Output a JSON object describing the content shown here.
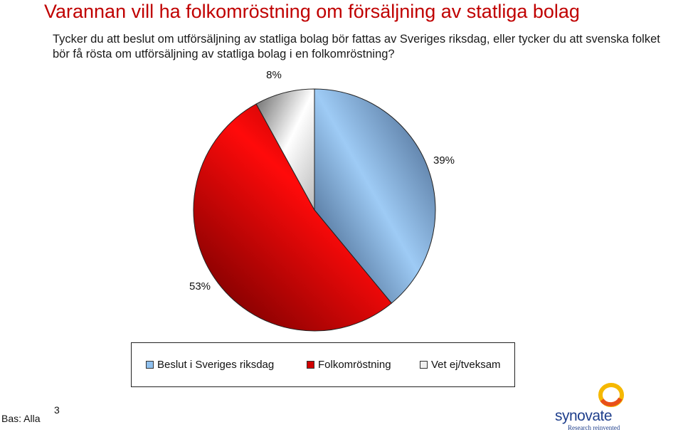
{
  "title": "Varannan vill ha folkomröstning om försäljning av statliga bolag",
  "question": "Tycker du att beslut om utförsäljning av statliga bolag bör fattas av Sveriges riksdag, eller tycker du att svenska folket bör få rösta om utförsäljning av statliga bolag i en folkomröstning?",
  "chart_data": {
    "type": "pie",
    "categories": [
      "Beslut i Sveriges riksdag",
      "Folkomröstning",
      "Vet ej/tveksam"
    ],
    "values": [
      39,
      53,
      8
    ],
    "labels": [
      "39%",
      "53%",
      "8%"
    ],
    "colors": [
      "#8fc0ee",
      "#e01010",
      "#f0f0f0"
    ],
    "legend_position": "bottom"
  },
  "footer": {
    "base": "Bas: Alla",
    "page_number": "3"
  },
  "logo": {
    "name": "synovate",
    "tagline": "Research reinvented"
  }
}
